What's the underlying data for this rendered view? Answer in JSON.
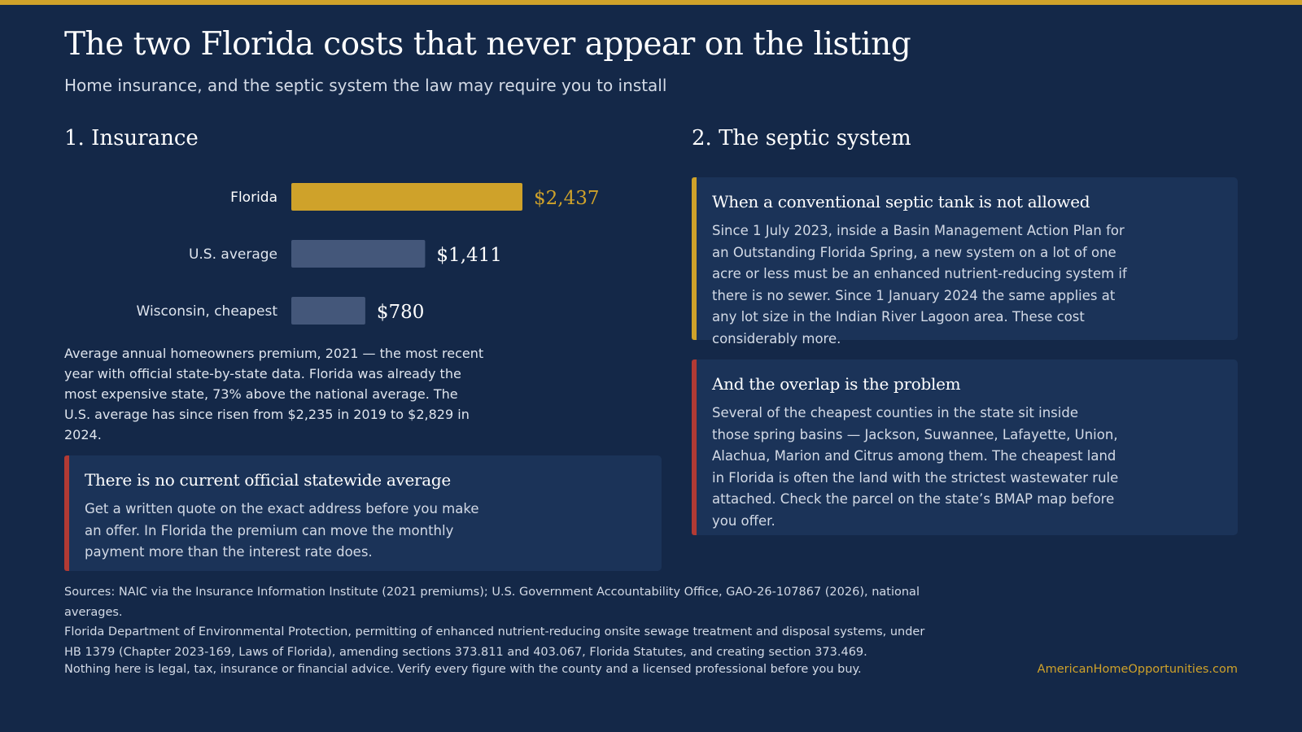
{
  "header": {
    "title": "The two Florida costs that never appear on the listing",
    "subtitle": "Home insurance, and the septic system the law may require you to install"
  },
  "insurance": {
    "heading": "1. Insurance",
    "note": "Average annual homeowners premium, 2021 — the most recent year with official state-by-state data. Florida was already the most expensive state, 73% above the national average. The U.S. average has since risen from $2,235 in 2019 to $2,829 in 2024.",
    "callout": {
      "title": "There is no current official statewide average",
      "body": "Get a written quote on the exact address before you make an offer. In Florida the premium can move the monthly payment more than the interest rate does."
    }
  },
  "chart_data": {
    "type": "bar",
    "orientation": "horizontal",
    "categories": [
      "Florida",
      "U.S. average",
      "Wisconsin, cheapest"
    ],
    "values": [
      2437,
      1411,
      780
    ],
    "value_labels": [
      "$2,437",
      "$1,411",
      "$780"
    ],
    "bar_colors": [
      "#cfa22a",
      "#44577a",
      "#44577a"
    ],
    "label_colors": [
      "#ffffff",
      "#dfe5ee",
      "#dfe5ee"
    ],
    "value_colors": [
      "#cfa22a",
      "#ffffff",
      "#ffffff"
    ],
    "title": "",
    "xlabel": "",
    "ylabel": "",
    "grid": false,
    "legend": false
  },
  "septic": {
    "heading": "2. The septic system",
    "card1": {
      "title": "When a conventional septic tank is not allowed",
      "body": "Since 1 July 2023, inside a Basin Management Action Plan for an Outstanding Florida Spring, a new system on a lot of one acre or less must be an enhanced nutrient-reducing system if there is no sewer. Since 1 January 2024 the same applies at any lot size in the Indian River Lagoon area. These cost considerably more."
    },
    "card2": {
      "title": "And the overlap is the problem",
      "body": "Several of the cheapest counties in the state sit inside those spring basins — Jackson, Suwannee, Lafayette, Union, Alachua, Marion and Citrus among them. The cheapest land in Florida is often the land with the strictest wastewater rule attached. Check the parcel on the state’s BMAP map before you offer."
    }
  },
  "footer": {
    "sources_1": "Sources: NAIC via the Insurance Information Institute (2021 premiums); U.S. Government Accountability Office, GAO-26-107867 (2026), national averages.",
    "sources_2": "Florida Department of Environmental Protection, permitting of enhanced nutrient-reducing onsite sewage treatment and disposal systems, under",
    "sources_3": "HB 1379 (Chapter 2023-169, Laws of Florida), amending sections 373.811 and 403.067, Florida Statutes, and creating section 373.469.",
    "disclaimer": "Nothing here is legal, tax, insurance or financial advice. Verify every figure with the county and a licensed professional before you buy.",
    "site": "AmericanHomeOpportunities.com"
  },
  "colors": {
    "background": "#142848",
    "gold": "#cfa22a",
    "red_accent": "#b23a34",
    "card": "#1b3358"
  }
}
